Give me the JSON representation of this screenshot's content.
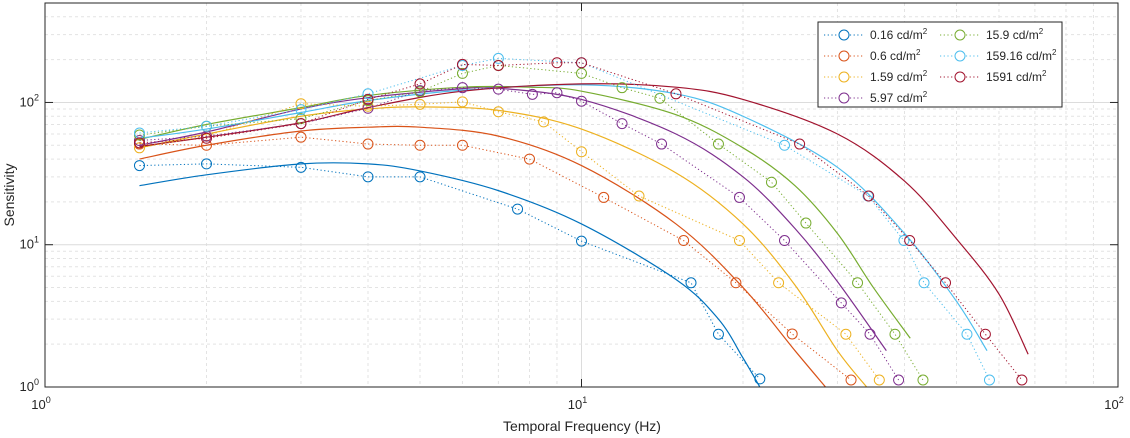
{
  "chart_data": {
    "type": "line",
    "title": "",
    "xlabel": "Temporal Frequency (Hz)",
    "ylabel": "Sensitivity",
    "xscale": "log",
    "yscale": "log",
    "xlim": [
      1,
      100
    ],
    "ylim": [
      1,
      500
    ],
    "grid": true,
    "legend_placement": "top-right",
    "x_ticks": [
      {
        "value": 1,
        "base": "10",
        "exp": "0"
      },
      {
        "value": 10,
        "base": "10",
        "exp": "1"
      },
      {
        "value": 100,
        "base": "10",
        "exp": "2"
      }
    ],
    "y_ticks": [
      {
        "value": 1,
        "base": "10",
        "exp": "0"
      },
      {
        "value": 10,
        "base": "10",
        "exp": "1"
      },
      {
        "value": 100,
        "base": "10",
        "exp": "2"
      }
    ],
    "series": [
      {
        "name": "0.16 cd/m",
        "sup": "2",
        "color": "#0072BD",
        "points": [
          [
            1.5,
            36
          ],
          [
            2,
            37
          ],
          [
            3,
            35
          ],
          [
            4,
            30
          ],
          [
            5,
            30
          ],
          [
            7.6,
            17.8
          ],
          [
            10,
            10.6
          ],
          [
            16,
            5.4
          ],
          [
            18,
            2.35
          ],
          [
            21.5,
            1.14
          ]
        ],
        "fit": [
          [
            1.5,
            26
          ],
          [
            2,
            31
          ],
          [
            3,
            37
          ],
          [
            4,
            37
          ],
          [
            5,
            33
          ],
          [
            7,
            24
          ],
          [
            10,
            14
          ],
          [
            15,
            5.7
          ],
          [
            18,
            3
          ],
          [
            20,
            1.6
          ],
          [
            21.5,
            1.0
          ]
        ]
      },
      {
        "name": "0.6 cd/m",
        "sup": "2",
        "color": "#D95319",
        "points": [
          [
            1.5,
            51
          ],
          [
            2,
            50
          ],
          [
            3,
            57
          ],
          [
            4,
            51
          ],
          [
            5,
            50
          ],
          [
            6,
            50
          ],
          [
            8,
            40
          ],
          [
            11,
            21.5
          ],
          [
            15.5,
            10.7
          ],
          [
            19.4,
            5.4
          ],
          [
            24.7,
            2.36
          ],
          [
            31.8,
            1.12
          ]
        ],
        "fit": [
          [
            1.5,
            40
          ],
          [
            2,
            50
          ],
          [
            3,
            63
          ],
          [
            4,
            67
          ],
          [
            5,
            67
          ],
          [
            7,
            58
          ],
          [
            10,
            36
          ],
          [
            15,
            14
          ],
          [
            20,
            5
          ],
          [
            25,
            1.8
          ],
          [
            28.5,
            1.0
          ]
        ]
      },
      {
        "name": "1.59 cd/m",
        "sup": "2",
        "color": "#EDB120",
        "points": [
          [
            1.5,
            48
          ],
          [
            2,
            58
          ],
          [
            3,
            98
          ],
          [
            4,
            94
          ],
          [
            5,
            97
          ],
          [
            6,
            101
          ],
          [
            7,
            86
          ],
          [
            8.5,
            73
          ],
          [
            10,
            45
          ],
          [
            12.8,
            22
          ],
          [
            19.7,
            10.7
          ],
          [
            23.3,
            5.4
          ],
          [
            31.1,
            2.35
          ],
          [
            35.9,
            1.12
          ]
        ],
        "fit": [
          [
            1.5,
            48
          ],
          [
            2,
            60
          ],
          [
            3,
            80
          ],
          [
            4,
            90
          ],
          [
            5,
            93
          ],
          [
            7,
            88
          ],
          [
            10,
            65
          ],
          [
            15,
            32
          ],
          [
            20,
            14
          ],
          [
            25,
            5.2
          ],
          [
            30,
            1.8
          ],
          [
            34,
            1.0
          ]
        ]
      },
      {
        "name": "5.97 cd/m",
        "sup": "2",
        "color": "#7E2F8E",
        "points": [
          [
            1.5,
            54
          ],
          [
            2,
            58
          ],
          [
            3,
            71
          ],
          [
            4,
            91
          ],
          [
            5,
            121
          ],
          [
            6,
            127
          ],
          [
            7,
            124
          ],
          [
            8.1,
            114
          ],
          [
            9,
            117
          ],
          [
            10,
            102
          ],
          [
            11.9,
            71
          ],
          [
            14.1,
            51
          ],
          [
            19.7,
            21.5
          ],
          [
            23.9,
            10.7
          ],
          [
            30.5,
            3.9
          ],
          [
            34.5,
            2.35
          ],
          [
            39,
            1.12
          ]
        ],
        "fit": [
          [
            1.5,
            50
          ],
          [
            2,
            62
          ],
          [
            3,
            90
          ],
          [
            4,
            108
          ],
          [
            6,
            125
          ],
          [
            7,
            126
          ],
          [
            10,
            105
          ],
          [
            15,
            60
          ],
          [
            20,
            30
          ],
          [
            25,
            13
          ],
          [
            30,
            5.5
          ],
          [
            37,
            1.8
          ]
        ]
      },
      {
        "name": "15.9 cd/m",
        "sup": "2",
        "color": "#77AC30",
        "points": [
          [
            1.5,
            59
          ],
          [
            2,
            68
          ],
          [
            3,
            77
          ],
          [
            4,
            103
          ],
          [
            5,
            119
          ],
          [
            6,
            160
          ],
          [
            7,
            182
          ],
          [
            10,
            160
          ],
          [
            11.9,
            127
          ],
          [
            14,
            107
          ],
          [
            18,
            51
          ],
          [
            22.6,
            27.5
          ],
          [
            26.2,
            14.2
          ],
          [
            32.7,
            5.4
          ],
          [
            38.4,
            2.35
          ],
          [
            43.3,
            1.12
          ]
        ],
        "fit": [
          [
            1.5,
            55
          ],
          [
            2,
            70
          ],
          [
            3,
            92
          ],
          [
            4,
            112
          ],
          [
            6,
            128
          ],
          [
            8,
            128
          ],
          [
            10,
            120
          ],
          [
            15,
            82
          ],
          [
            20,
            48
          ],
          [
            25,
            26
          ],
          [
            30,
            12
          ],
          [
            35,
            5
          ],
          [
            41,
            2.2
          ]
        ]
      },
      {
        "name": "159.16 cd/m",
        "sup": "2",
        "color": "#4DBEEE",
        "points": [
          [
            1.5,
            61
          ],
          [
            2,
            68
          ],
          [
            3,
            89
          ],
          [
            4,
            115
          ],
          [
            6,
            182
          ],
          [
            7,
            204
          ],
          [
            10,
            190
          ],
          [
            23.9,
            50
          ],
          [
            34.2,
            22
          ],
          [
            39.9,
            10.7
          ],
          [
            43.5,
            5.4
          ],
          [
            52.3,
            2.35
          ],
          [
            57.6,
            1.12
          ]
        ],
        "fit": [
          [
            1.5,
            56
          ],
          [
            2,
            65
          ],
          [
            3,
            85
          ],
          [
            4,
            103
          ],
          [
            6,
            122
          ],
          [
            10,
            133
          ],
          [
            15,
            115
          ],
          [
            20,
            80
          ],
          [
            30,
            35
          ],
          [
            40,
            12
          ],
          [
            50,
            4
          ],
          [
            57,
            1.8
          ]
        ]
      },
      {
        "name": "1591 cd/m",
        "sup": "2",
        "color": "#A2142F",
        "points": [
          [
            1.5,
            52
          ],
          [
            2,
            56
          ],
          [
            3,
            71
          ],
          [
            4,
            105
          ],
          [
            5,
            135
          ],
          [
            6,
            185
          ],
          [
            7,
            182
          ],
          [
            9,
            190
          ],
          [
            10,
            190
          ],
          [
            15,
            115
          ],
          [
            25.5,
            51
          ],
          [
            34.3,
            22
          ],
          [
            40.9,
            10.7
          ],
          [
            47.7,
            5.4
          ],
          [
            56.6,
            2.35
          ],
          [
            66.2,
            1.12
          ]
        ],
        "fit": [
          [
            1.5,
            49
          ],
          [
            2,
            57
          ],
          [
            3,
            72
          ],
          [
            4,
            92
          ],
          [
            6,
            120
          ],
          [
            10,
            135
          ],
          [
            15,
            128
          ],
          [
            20,
            105
          ],
          [
            30,
            60
          ],
          [
            40,
            28
          ],
          [
            50,
            11
          ],
          [
            60,
            4.5
          ],
          [
            68,
            1.7
          ]
        ]
      }
    ]
  }
}
